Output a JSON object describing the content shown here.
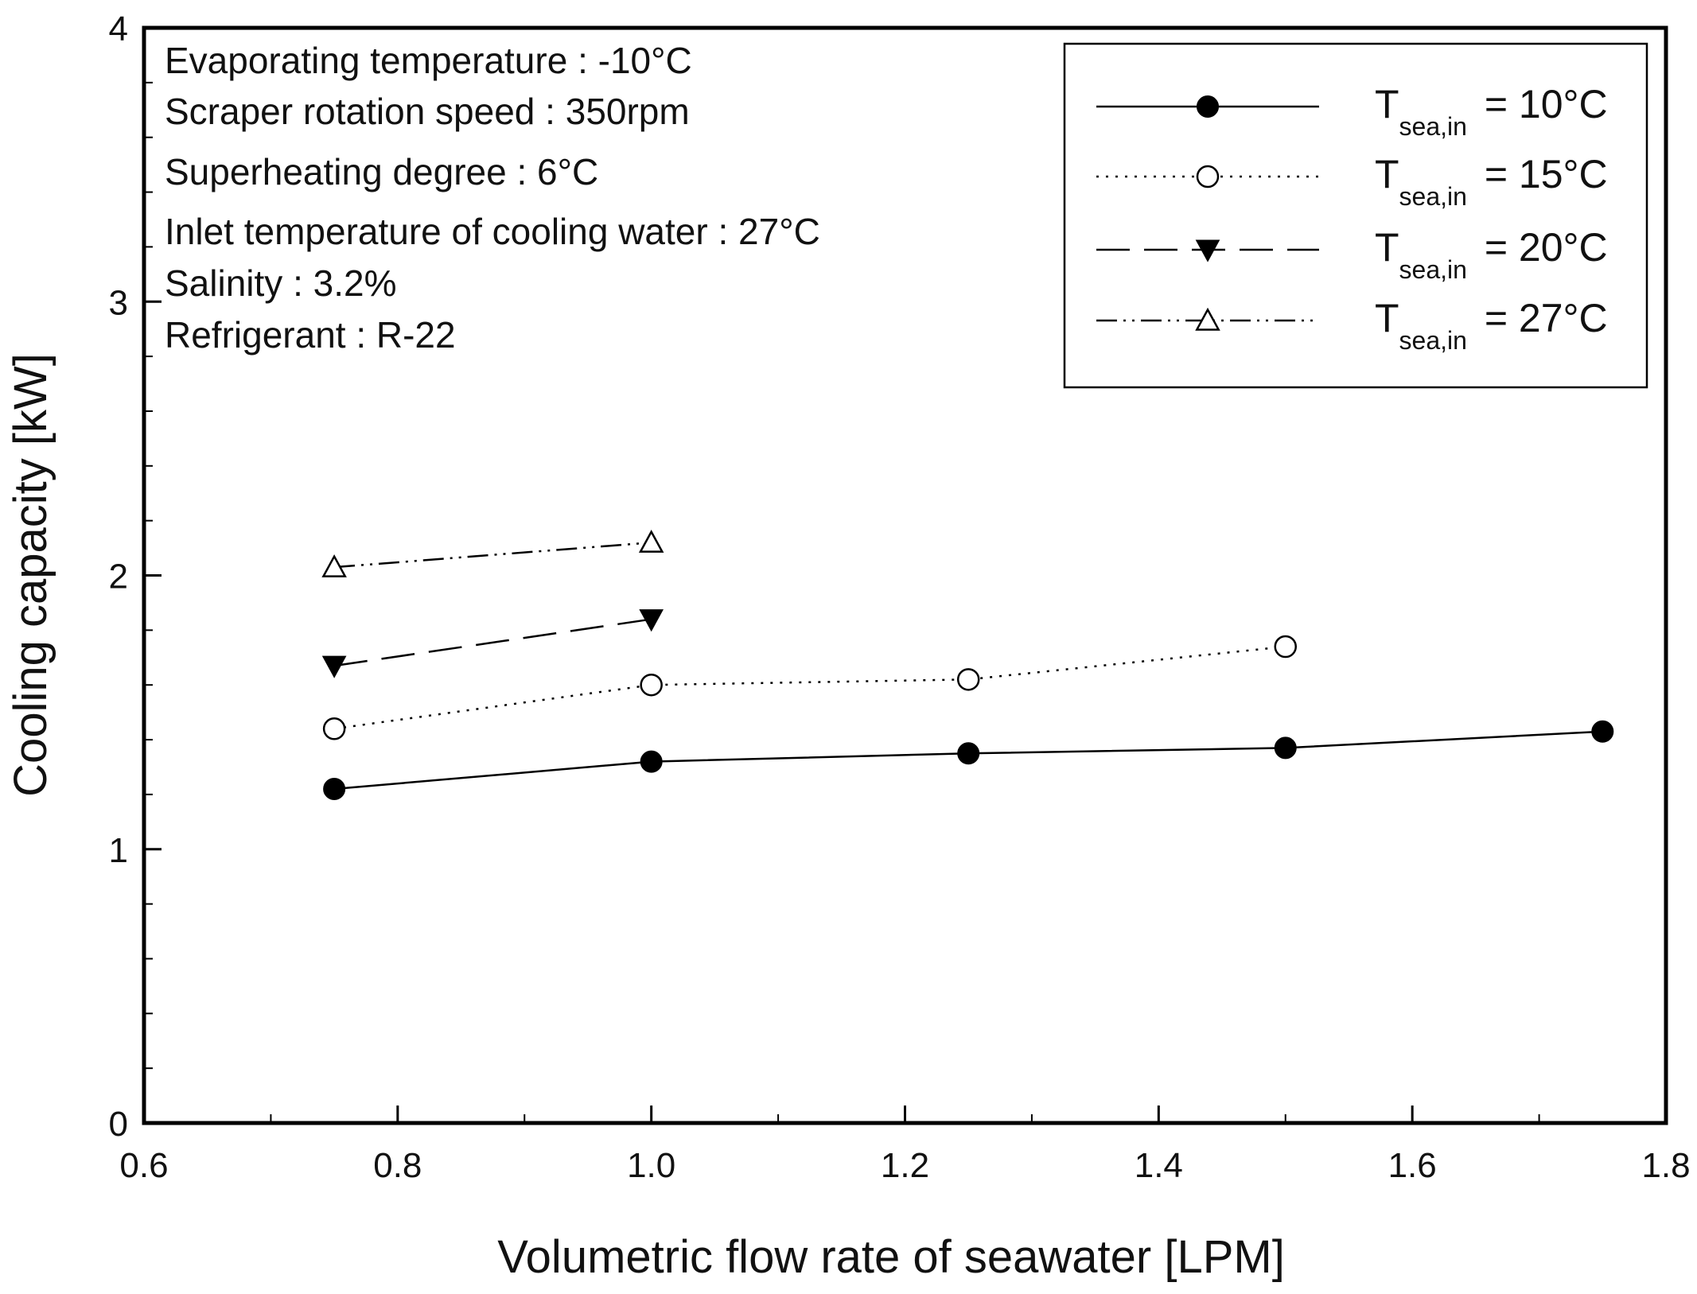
{
  "chart_data": {
    "type": "line",
    "title": "",
    "xlabel": "Volumetric flow rate of seawater [LPM]",
    "ylabel": "Cooling capacity [kW]",
    "xlim": [
      0.6,
      1.8
    ],
    "ylim": [
      0,
      4
    ],
    "xticks": [
      "0.6",
      "0.8",
      "1.0",
      "1.2",
      "1.4",
      "1.6",
      "1.8"
    ],
    "yticks": [
      "0",
      "1",
      "2",
      "3",
      "4"
    ],
    "grid": false,
    "legend_position": "top-right",
    "annotations": [
      "Evaporating temperature : -10°C",
      "Scraper rotation speed : 350rpm",
      "Superheating degree : 6°C",
      "Inlet temperature of cooling water : 27°C",
      "Salinity : 3.2%",
      "Refrigerant : R-22"
    ],
    "series": [
      {
        "name": "Tsea,in = 10°C",
        "legend_main": "T",
        "legend_sub": "sea,in",
        "legend_rest": " = 10°C",
        "line_style": "solid",
        "marker": "filled-circle",
        "x": [
          0.75,
          1.0,
          1.25,
          1.5,
          1.75
        ],
        "values": [
          1.22,
          1.32,
          1.35,
          1.37,
          1.43
        ]
      },
      {
        "name": "Tsea,in = 15°C",
        "legend_main": "T",
        "legend_sub": "sea,in",
        "legend_rest": " = 15°C",
        "line_style": "dotted",
        "marker": "open-circle",
        "x": [
          0.75,
          1.0,
          1.25,
          1.5
        ],
        "values": [
          1.44,
          1.6,
          1.62,
          1.74
        ]
      },
      {
        "name": "Tsea,in = 20°C",
        "legend_main": "T",
        "legend_sub": "sea,in",
        "legend_rest": " = 20°C",
        "line_style": "dashed",
        "marker": "filled-triangle-down",
        "x": [
          0.75,
          1.0
        ],
        "values": [
          1.67,
          1.84
        ]
      },
      {
        "name": "Tsea,in = 27°C",
        "legend_main": "T",
        "legend_sub": "sea,in",
        "legend_rest": " = 27°C",
        "line_style": "dash-dot-dot",
        "marker": "open-triangle-up",
        "x": [
          0.75,
          1.0
        ],
        "values": [
          2.03,
          2.12
        ]
      }
    ]
  },
  "colors": {
    "ink": "#000000",
    "background": "#ffffff"
  }
}
